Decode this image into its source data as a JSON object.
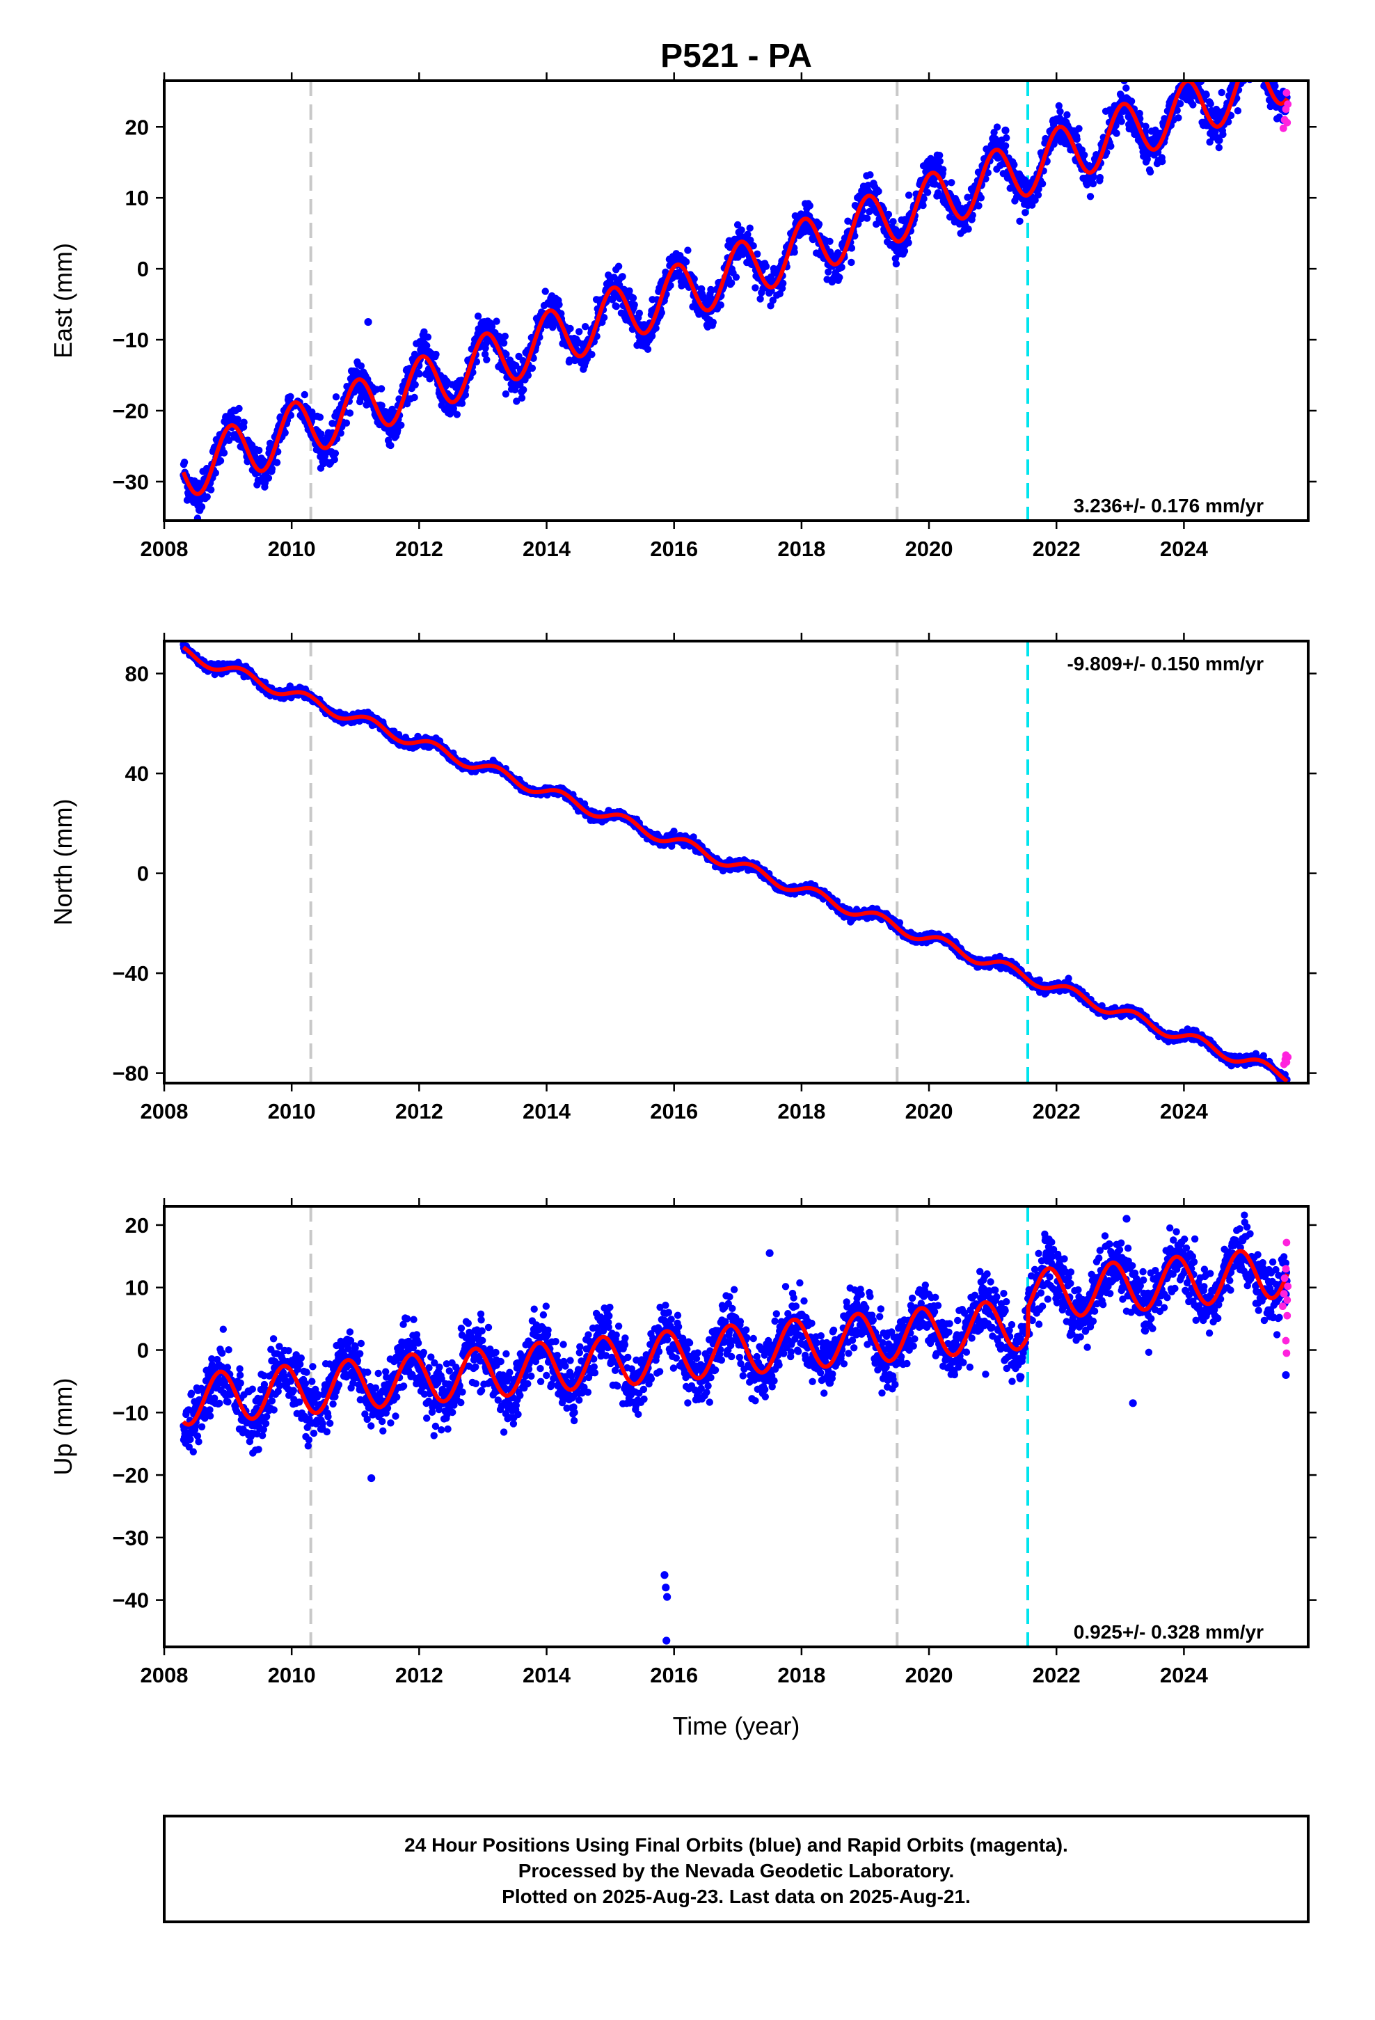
{
  "title": "P521 - PA",
  "footer": {
    "line1": "24 Hour Positions Using Final Orbits (blue) and Rapid Orbits (magenta).",
    "line2": "Processed by the Nevada Geodetic Laboratory.",
    "line3": "Plotted on 2025-Aug-23. Last data on 2025-Aug-21."
  },
  "colors": {
    "final_orbits": "#0000ff",
    "rapid_orbits": "#ff22dd",
    "model_fit": "#ff0000",
    "equipment_change": "#c8c8c8",
    "event": "#00e5ee"
  },
  "chart_data": [
    {
      "type": "scatter",
      "component": "east",
      "ylabel": "East (mm)",
      "xlabel": "",
      "xlim": [
        2008.0,
        2025.95
      ],
      "ylim": [
        -35.5,
        26.5
      ],
      "x_ticks": [
        2008,
        2010,
        2012,
        2014,
        2016,
        2018,
        2020,
        2022,
        2024
      ],
      "y_ticks": [
        -30,
        -20,
        -10,
        0,
        10,
        20
      ],
      "rate_label": "3.236+/- 0.176 mm/yr",
      "rate_label_position": "bottom-right",
      "vertical_lines": [
        {
          "x": 2010.3,
          "kind": "equipment_change"
        },
        {
          "x": 2019.5,
          "kind": "equipment_change"
        },
        {
          "x": 2021.55,
          "kind": "event"
        }
      ],
      "model": {
        "start": 2008.3,
        "end": 2025.62,
        "offset_at_start": -28.5,
        "rate": 3.236,
        "seasonal_amplitude": 4.0,
        "seasonal_phase": 1.3
      },
      "scatter_sd": 1.3,
      "outliers": [
        {
          "x": 2011.2,
          "y": -7.5
        },
        {
          "x": 2021.2,
          "y": 19.5
        }
      ],
      "rapid_points": [
        [
          2025.56,
          19.8
        ],
        [
          2025.58,
          21.0
        ],
        [
          2025.6,
          22.5
        ],
        [
          2025.61,
          24.8
        ],
        [
          2025.62,
          20.6
        ],
        [
          2025.63,
          23.2
        ]
      ]
    },
    {
      "type": "scatter",
      "component": "north",
      "ylabel": "North (mm)",
      "xlabel": "",
      "xlim": [
        2008.0,
        2025.95
      ],
      "ylim": [
        -84,
        93
      ],
      "x_ticks": [
        2008,
        2010,
        2012,
        2014,
        2016,
        2018,
        2020,
        2022,
        2024
      ],
      "y_ticks": [
        -80,
        -40,
        0,
        40,
        80
      ],
      "rate_label": "-9.809+/- 0.150 mm/yr",
      "rate_label_position": "top-right",
      "vertical_lines": [
        {
          "x": 2010.3,
          "kind": "equipment_change"
        },
        {
          "x": 2019.5,
          "kind": "equipment_change"
        },
        {
          "x": 2021.55,
          "kind": "event"
        }
      ],
      "model": {
        "start": 2008.3,
        "end": 2025.62,
        "offset_at_start": 88.5,
        "rate": -9.809,
        "seasonal_amplitude": 2.3,
        "seasonal_phase": 0.2
      },
      "scatter_sd": 0.9,
      "outliers": [],
      "rapid_points": [
        [
          2025.57,
          -76.5
        ],
        [
          2025.59,
          -74.5
        ],
        [
          2025.6,
          -72.8
        ],
        [
          2025.61,
          -75.6
        ],
        [
          2025.63,
          -73.6
        ]
      ]
    },
    {
      "type": "scatter",
      "component": "up",
      "ylabel": "Up (mm)",
      "xlabel": "Time (year)",
      "xlim": [
        2008.0,
        2025.95
      ],
      "ylim": [
        -47.5,
        23.0
      ],
      "x_ticks": [
        2008,
        2010,
        2012,
        2014,
        2016,
        2018,
        2020,
        2022,
        2024
      ],
      "y_ticks": [
        -40,
        -30,
        -20,
        -10,
        0,
        10,
        20
      ],
      "rate_label": "0.925+/- 0.328 mm/yr",
      "rate_label_position": "bottom-right",
      "vertical_lines": [
        {
          "x": 2010.3,
          "kind": "equipment_change"
        },
        {
          "x": 2019.5,
          "kind": "equipment_change"
        },
        {
          "x": 2021.55,
          "kind": "event"
        }
      ],
      "model": {
        "start": 2008.3,
        "end": 2025.62,
        "offset_at_start": -8.0,
        "rate": 0.925,
        "seasonal_amplitude": 4.0,
        "seasonal_phase": 2.3,
        "step_at": 2021.55,
        "step": 4.5
      },
      "scatter_sd": 2.4,
      "outliers": [
        {
          "x": 2015.85,
          "y": -36.0
        },
        {
          "x": 2015.87,
          "y": -38.0
        },
        {
          "x": 2015.89,
          "y": -39.5
        },
        {
          "x": 2015.88,
          "y": -46.5
        },
        {
          "x": 2011.25,
          "y": -20.5
        },
        {
          "x": 2023.1,
          "y": 21.0
        },
        {
          "x": 2023.2,
          "y": -8.5
        },
        {
          "x": 2025.6,
          "y": -4.0
        },
        {
          "x": 2017.5,
          "y": 15.5
        }
      ],
      "rapid_points": [
        [
          2025.55,
          7.0
        ],
        [
          2025.57,
          9.0
        ],
        [
          2025.58,
          11.5
        ],
        [
          2025.6,
          13.0
        ],
        [
          2025.61,
          17.2
        ],
        [
          2025.62,
          5.5
        ],
        [
          2025.6,
          1.5
        ],
        [
          2025.61,
          -0.5
        ],
        [
          2025.62,
          8.0
        ],
        [
          2025.63,
          10.2
        ]
      ]
    }
  ]
}
